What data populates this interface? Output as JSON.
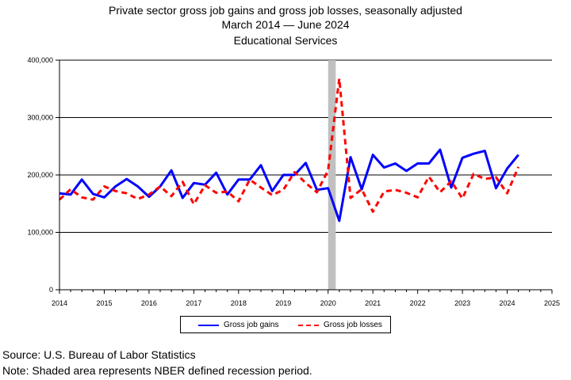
{
  "titles": {
    "line1": "Private sector gross job gains and gross job losses, seasonally adjusted",
    "line2": "March 2014 — June 2024",
    "line3": "Educational Services"
  },
  "footer": {
    "source": "Source: U.S. Bureau of Labor Statistics",
    "note": "Note: Shaded area represents NBER defined recession period."
  },
  "chart_data": {
    "type": "line",
    "title": "Private sector gross job gains and gross job losses, seasonally adjusted",
    "subtitle": "March 2014 — June 2024",
    "subtitle2": "Educational Services",
    "xlabel": "",
    "ylabel": "",
    "xlim": [
      2014,
      2025
    ],
    "ylim": [
      0,
      400000
    ],
    "x_ticks": [
      2014,
      2015,
      2016,
      2017,
      2018,
      2019,
      2020,
      2021,
      2022,
      2023,
      2024,
      2025
    ],
    "y_ticks": [
      0,
      100000,
      200000,
      300000,
      400000
    ],
    "y_tick_labels": [
      "0",
      "100,000",
      "200,000",
      "300,000",
      "400,000"
    ],
    "grid": "horizontal",
    "legend_position": "bottom",
    "recession": {
      "start": 2020.0,
      "end": 2020.17,
      "color": "#c0c0c0"
    },
    "x": [
      2014.0,
      2014.25,
      2014.5,
      2014.75,
      2015.0,
      2015.25,
      2015.5,
      2015.75,
      2016.0,
      2016.25,
      2016.5,
      2016.75,
      2017.0,
      2017.25,
      2017.5,
      2017.75,
      2018.0,
      2018.25,
      2018.5,
      2018.75,
      2019.0,
      2019.25,
      2019.5,
      2019.75,
      2020.0,
      2020.25,
      2020.5,
      2020.75,
      2021.0,
      2021.25,
      2021.5,
      2021.75,
      2022.0,
      2022.25,
      2022.5,
      2022.75,
      2023.0,
      2023.25,
      2023.5,
      2023.75,
      2024.0,
      2024.25
    ],
    "series": [
      {
        "name": "Gross job gains",
        "color": "#0000ff",
        "style": "solid",
        "values": [
          168000,
          166000,
          192000,
          167000,
          161000,
          180000,
          193000,
          180000,
          162000,
          180000,
          208000,
          160000,
          186000,
          183000,
          204000,
          166000,
          192000,
          192000,
          217000,
          172000,
          200000,
          200000,
          221000,
          174000,
          177000,
          120000,
          231000,
          175000,
          235000,
          213000,
          220000,
          207000,
          220000,
          220000,
          244000,
          178000,
          230000,
          237000,
          242000,
          177000,
          211000,
          235000
        ]
      },
      {
        "name": "Gross job losses",
        "color": "#ff0000",
        "style": "dashed",
        "values": [
          157000,
          175000,
          161000,
          157000,
          180000,
          172000,
          168000,
          158000,
          166000,
          180000,
          163000,
          188000,
          149000,
          182000,
          169000,
          171000,
          154000,
          192000,
          178000,
          165000,
          174000,
          205000,
          186000,
          170000,
          208000,
          368000,
          160000,
          175000,
          136000,
          171000,
          174000,
          169000,
          161000,
          197000,
          170000,
          189000,
          159000,
          202000,
          193000,
          196000,
          168000,
          214000
        ]
      }
    ]
  }
}
